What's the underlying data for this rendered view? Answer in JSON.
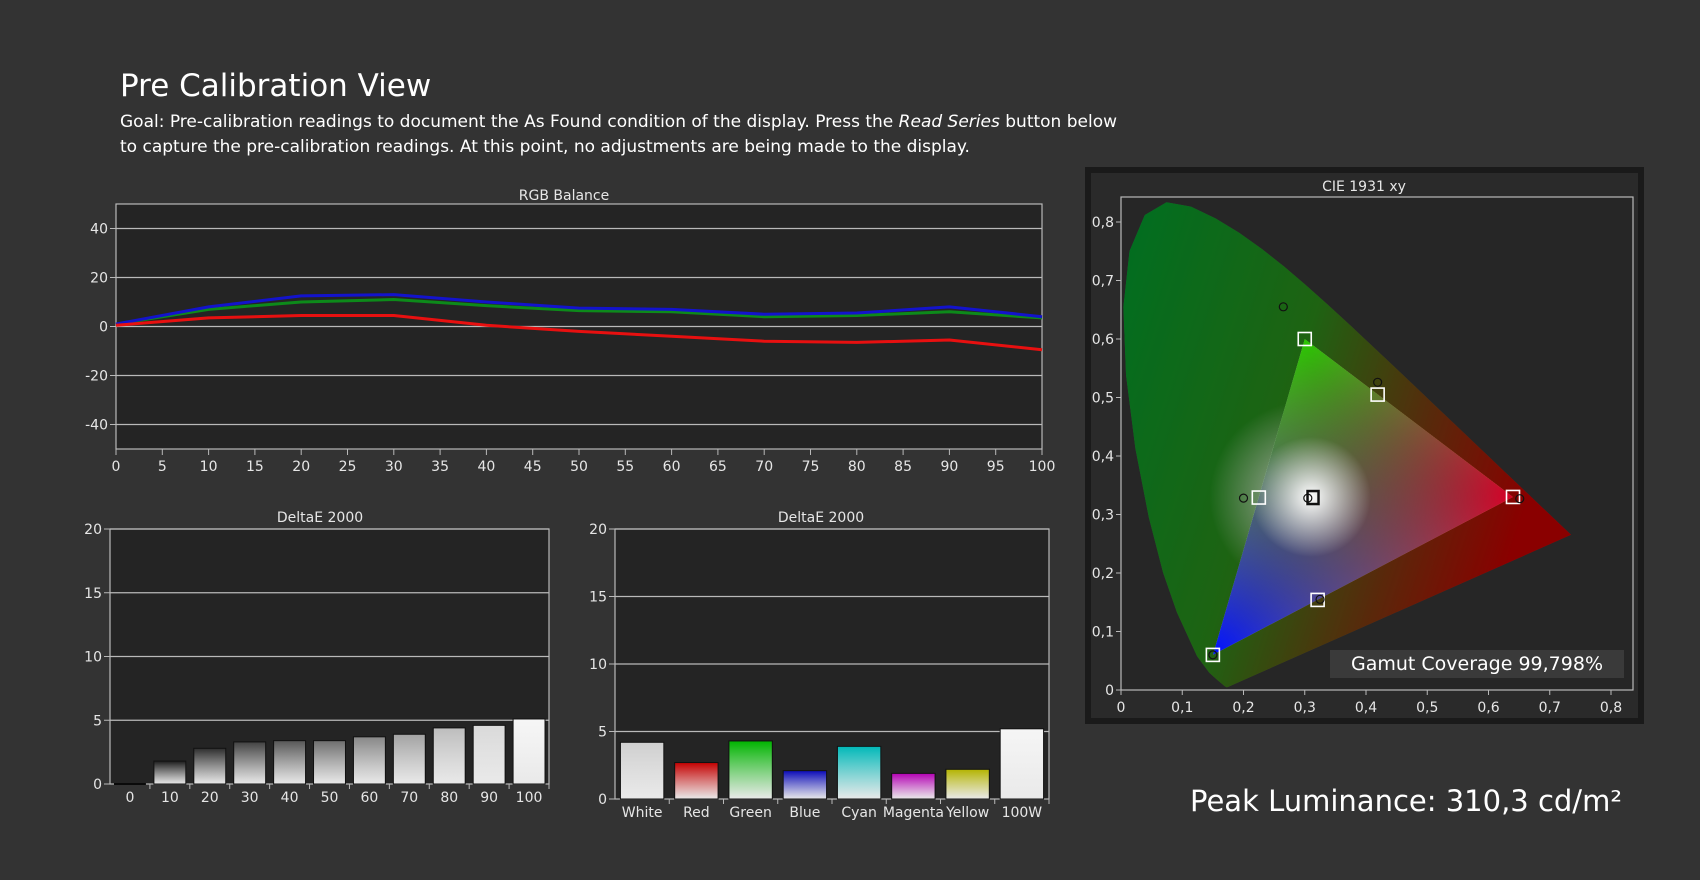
{
  "header": {
    "title": "Pre Calibration View",
    "goal_prefix": "Goal: Pre-calibration readings to document the As Found condition of the display. Press the ",
    "goal_emphasis": "Read Series",
    "goal_suffix": " button below to capture the pre-calibration readings. At this point, no adjustments are being made to the display."
  },
  "colors": {
    "background": "#333333",
    "plot_background": "#242424",
    "grid": "#b9b9b9",
    "red": "#e81010",
    "green": "#0d8a1a",
    "blue": "#1313cc"
  },
  "chart_data": [
    {
      "id": "rgb_balance",
      "type": "line",
      "title": "RGB Balance",
      "xlabel": "",
      "ylabel": "",
      "xlim": [
        0,
        100
      ],
      "ylim": [
        -50,
        50
      ],
      "x_ticks": [
        0,
        5,
        10,
        15,
        20,
        25,
        30,
        35,
        40,
        45,
        50,
        55,
        60,
        65,
        70,
        75,
        80,
        85,
        90,
        95,
        100
      ],
      "y_ticks": [
        -40,
        -20,
        0,
        20,
        40
      ],
      "grid": true,
      "x": [
        0,
        10,
        20,
        30,
        40,
        50,
        60,
        70,
        80,
        90,
        100
      ],
      "series": [
        {
          "color": "#0d8a1a",
          "values": [
            1,
            7,
            10,
            11,
            8.5,
            6.5,
            6,
            4,
            4.5,
            6,
            3.5
          ]
        },
        {
          "color": "#1313cc",
          "values": [
            1,
            8,
            12.5,
            13,
            10,
            7.5,
            7,
            5,
            5.5,
            8,
            4
          ]
        },
        {
          "color": "#e81010",
          "values": [
            0.5,
            3.5,
            4.5,
            4.5,
            0.5,
            -2,
            -4,
            -6,
            -6.5,
            -5.5,
            -9.5
          ]
        }
      ]
    },
    {
      "id": "deltae_grayscale",
      "type": "bar",
      "title": "DeltaE 2000",
      "xlabel": "",
      "ylabel": "",
      "ylim": [
        0,
        20
      ],
      "y_ticks": [
        0,
        5,
        10,
        15,
        20
      ],
      "grid": true,
      "categories": [
        "0",
        "10",
        "20",
        "30",
        "40",
        "50",
        "60",
        "70",
        "80",
        "90",
        "100"
      ],
      "values": [
        0,
        1.8,
        2.8,
        3.3,
        3.4,
        3.4,
        3.7,
        3.9,
        4.4,
        4.6,
        5.1
      ],
      "bar_colors": [
        "#0a0a0a",
        "#1c1c1c",
        "#2e2e2e",
        "#424242",
        "#575757",
        "#6e6e6e",
        "#878787",
        "#a2a2a2",
        "#bdbdbd",
        "#d9d9d9",
        "#f6f6f6"
      ]
    },
    {
      "id": "deltae_colors",
      "type": "bar",
      "title": "DeltaE 2000",
      "xlabel": "",
      "ylabel": "",
      "ylim": [
        0,
        20
      ],
      "y_ticks": [
        0,
        5,
        10,
        15,
        20
      ],
      "grid": true,
      "categories": [
        "White",
        "Red",
        "Green",
        "Blue",
        "Cyan",
        "Magenta",
        "Yellow",
        "100W"
      ],
      "values": [
        4.2,
        2.7,
        4.3,
        2.1,
        3.9,
        1.9,
        2.2,
        5.2
      ],
      "bar_colors": [
        "#cfcfcf",
        "#c40000",
        "#00b400",
        "#0a0ab8",
        "#00b8b8",
        "#b400b4",
        "#b4b400",
        "#f5f5f5"
      ]
    },
    {
      "id": "cie_1931",
      "type": "scatter",
      "title": "CIE 1931 xy",
      "xlabel": "",
      "ylabel": "",
      "xlim": [
        0,
        0.85
      ],
      "ylim": [
        0,
        0.85
      ],
      "x_ticks": [
        "0",
        "0,1",
        "0,2",
        "0,3",
        "0,4",
        "0,5",
        "0,6",
        "0,7",
        "0,8"
      ],
      "y_ticks": [
        "0",
        "0,1",
        "0,2",
        "0,3",
        "0,4",
        "0,5",
        "0,6",
        "0,7",
        "0,8"
      ],
      "gamut_triangle": [
        [
          0.64,
          0.33
        ],
        [
          0.3,
          0.6
        ],
        [
          0.15,
          0.06
        ]
      ],
      "targets": [
        {
          "x": 0.64,
          "y": 0.33
        },
        {
          "x": 0.3,
          "y": 0.6
        },
        {
          "x": 0.15,
          "y": 0.06
        },
        {
          "x": 0.225,
          "y": 0.329
        },
        {
          "x": 0.321,
          "y": 0.154
        },
        {
          "x": 0.419,
          "y": 0.505
        },
        {
          "x": 0.3127,
          "y": 0.329
        }
      ],
      "measured": [
        {
          "x": 0.651,
          "y": 0.327
        },
        {
          "x": 0.265,
          "y": 0.655
        },
        {
          "x": 0.15,
          "y": 0.06
        },
        {
          "x": 0.2,
          "y": 0.328
        },
        {
          "x": 0.325,
          "y": 0.155
        },
        {
          "x": 0.419,
          "y": 0.526
        },
        {
          "x": 0.305,
          "y": 0.328
        }
      ],
      "gamut_coverage": "Gamut Coverage 99,798%"
    }
  ],
  "peak_luminance": "Peak Luminance: 310,3 cd/m²"
}
